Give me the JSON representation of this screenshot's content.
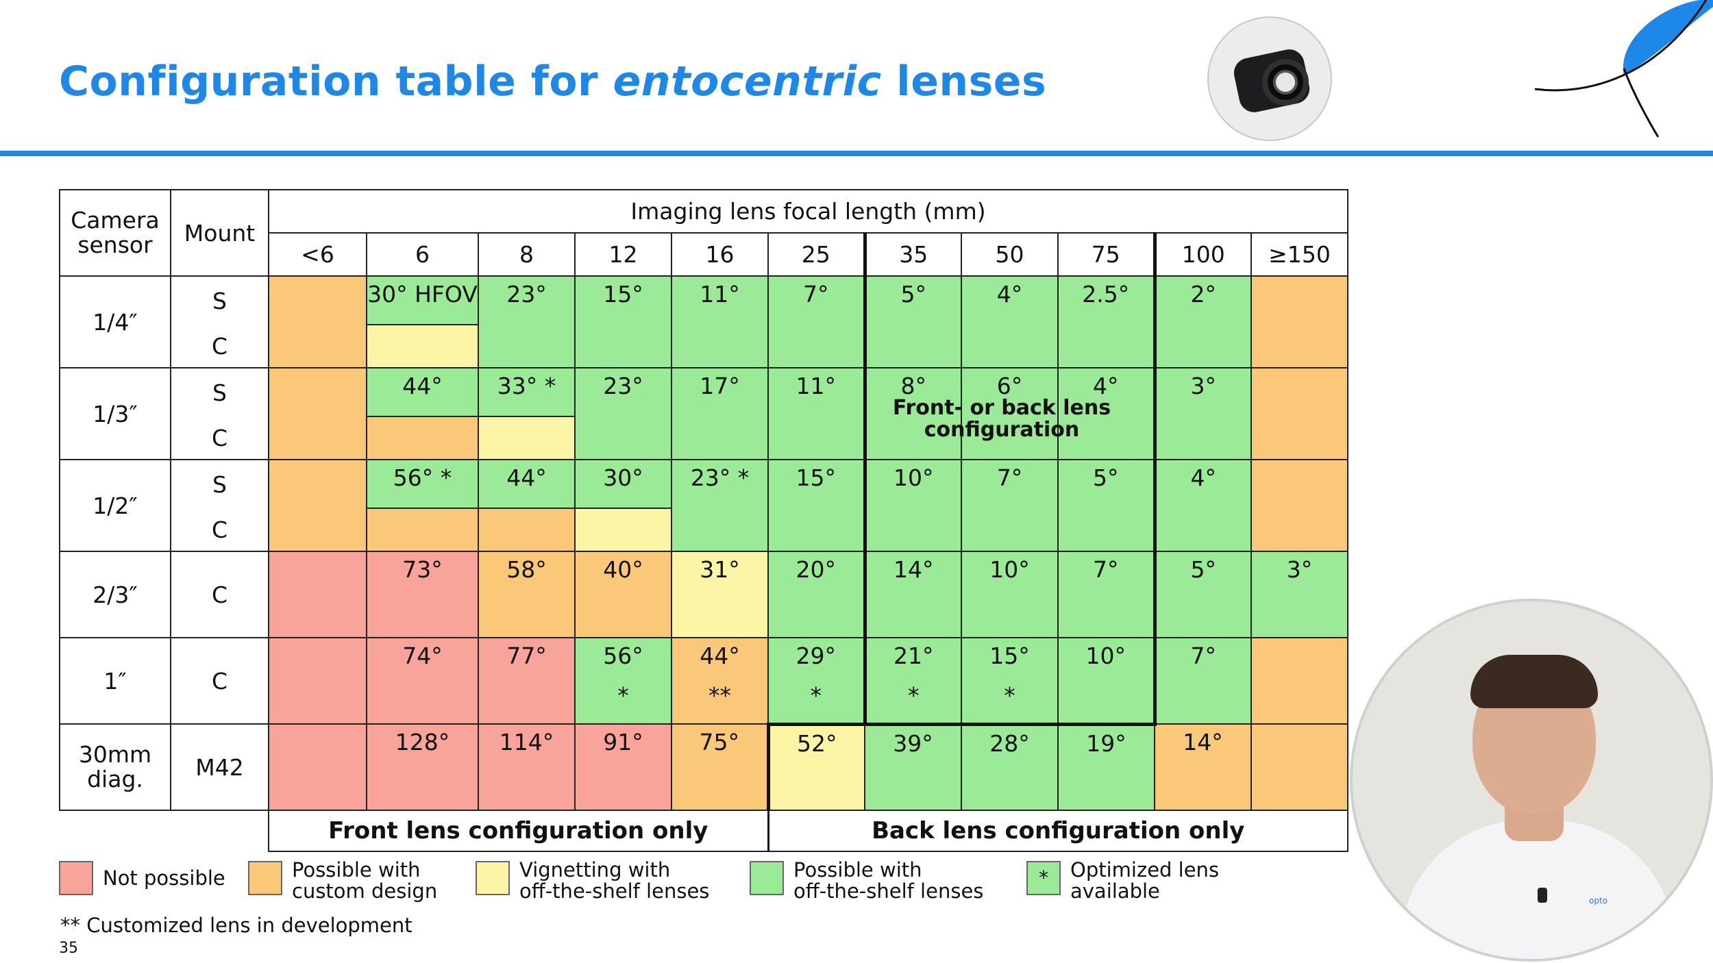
{
  "slide": {
    "title_part1": "Configuration table for ",
    "title_italic": "entocentric",
    "title_part2": " lenses",
    "page_number": "35",
    "accent_color": "#1e88e8"
  },
  "table": {
    "col_camera_sensor": "Camera sensor",
    "col_mount": "Mount",
    "focal_header": "Imaging lens focal length (mm)",
    "focal_lengths": [
      "<6",
      "6",
      "8",
      "12",
      "16",
      "25",
      "35",
      "50",
      "75",
      "100",
      "≥150"
    ],
    "sensors": [
      "1/4″",
      "1/3″",
      "1/2″",
      "2/3″",
      "1″",
      "30mm diag."
    ],
    "mounts": {
      "s": "S",
      "c": "C",
      "m42": "M42"
    },
    "values": {
      "r14": [
        "30° HFOV",
        "23°",
        "15°",
        "11°",
        "7°",
        "5°",
        "4°",
        "2.5°",
        "2°"
      ],
      "r13": [
        "44°",
        "33° *",
        "23°",
        "17°",
        "11°",
        "8°",
        "6°",
        "4°",
        "3°"
      ],
      "r12": [
        "56° *",
        "44°",
        "30°",
        "23° *",
        "15°",
        "10°",
        "7°",
        "5°",
        "4°"
      ],
      "r23": [
        "73°",
        "58°",
        "40°",
        "31°",
        "20°",
        "14°",
        "10°",
        "7°",
        "5°",
        "3°"
      ],
      "r1": [
        "74°",
        "77°",
        "56°",
        "44°",
        "29°",
        "21°",
        "15°",
        "10°",
        "7°"
      ],
      "r1_marks": [
        "",
        "",
        "*",
        "**",
        "*",
        "*",
        "*",
        "",
        ""
      ],
      "r30": [
        "128°",
        "114°",
        "91°",
        "75°",
        "52°",
        "39°",
        "28°",
        "19°",
        "14°"
      ]
    },
    "back_note": "Front- or back lens configuration",
    "front_only": "Front lens configuration only",
    "back_only": "Back lens configuration only"
  },
  "legend": {
    "not_possible": "Not possible",
    "custom_design_1": "Possible with",
    "custom_design_2": "custom design",
    "vignetting_1": "Vignetting with",
    "vignetting_2": "off-the-shelf lenses",
    "possible_1": "Possible with",
    "possible_2": "off-the-shelf lenses",
    "optimized_1": "Optimized lens",
    "optimized_2": "available",
    "optimized_symbol": "*",
    "colors": {
      "not_possible": "#f8a49b",
      "custom_design": "#fbc778",
      "vignetting": "#fdf5a6",
      "possible": "#9aea97"
    }
  },
  "footnote": "** Customized lens in development",
  "video": {
    "label": "opto"
  }
}
